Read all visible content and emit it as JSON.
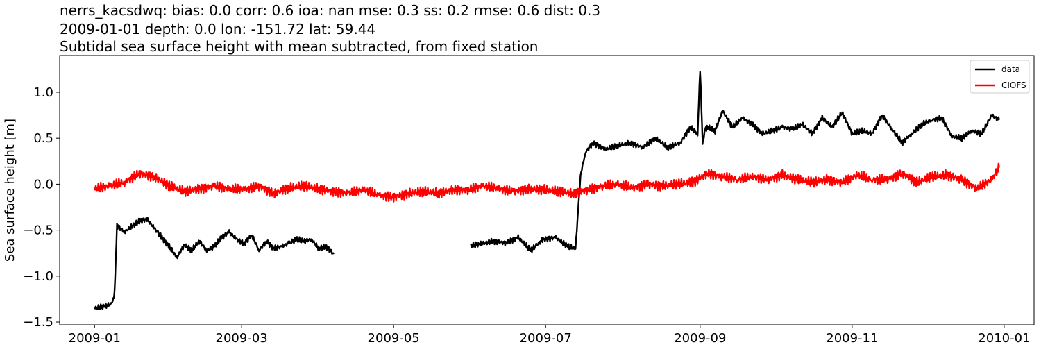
{
  "chart_data": {
    "type": "line",
    "title_lines": [
      "nerrs_kacsdwq: bias: 0.0  corr: 0.6  ioa: nan  mse: 0.3  ss: 0.2  rmse: 0.6  dist: 0.3",
      "2009-01-01 depth: 0.0 lon: -151.72 lat: 59.44",
      "Subtidal sea surface height with mean subtracted, from fixed station"
    ],
    "xlabel": "",
    "ylabel": "Sea surface height [m]",
    "xlim": [
      "2008-12-18",
      "2010-01-13"
    ],
    "ylim": [
      -1.53,
      1.4
    ],
    "x_ticks": [
      "2009-01",
      "2009-03",
      "2009-05",
      "2009-07",
      "2009-09",
      "2009-11",
      "2010-01"
    ],
    "y_ticks": [
      -1.5,
      -1.0,
      -0.5,
      0.0,
      0.5,
      1.0
    ],
    "y_tick_labels": [
      "−1.5",
      "−1.0",
      "−0.5",
      "0.0",
      "0.5",
      "1.0"
    ],
    "grid": false,
    "legend_position": "top-right",
    "series": [
      {
        "name": "data",
        "color": "#000000",
        "segments": [
          {
            "x": [
              "2009-01-01",
              "2009-01-05",
              "2009-01-08",
              "2009-01-09",
              "2009-01-10",
              "2009-01-13",
              "2009-01-16",
              "2009-01-19",
              "2009-01-22",
              "2009-01-25",
              "2009-01-28",
              "2009-01-31",
              "2009-02-03",
              "2009-02-06",
              "2009-02-09",
              "2009-02-12",
              "2009-02-15",
              "2009-02-18",
              "2009-02-21",
              "2009-02-24",
              "2009-02-27",
              "2009-03-02",
              "2009-03-05",
              "2009-03-08",
              "2009-03-11",
              "2009-03-14",
              "2009-03-17",
              "2009-03-20",
              "2009-03-23",
              "2009-03-26",
              "2009-03-29",
              "2009-04-01",
              "2009-04-04",
              "2009-04-07"
            ],
            "y": [
              -1.35,
              -1.33,
              -1.3,
              -1.2,
              -0.45,
              -0.52,
              -0.46,
              -0.4,
              -0.38,
              -0.48,
              -0.58,
              -0.68,
              -0.8,
              -0.66,
              -0.72,
              -0.62,
              -0.72,
              -0.68,
              -0.58,
              -0.52,
              -0.6,
              -0.65,
              -0.55,
              -0.72,
              -0.62,
              -0.7,
              -0.68,
              -0.64,
              -0.6,
              -0.62,
              -0.6,
              -0.7,
              -0.68,
              -0.76
            ]
          },
          {
            "x": [
              "2009-06-01",
              "2009-06-05",
              "2009-06-10",
              "2009-06-15",
              "2009-06-20",
              "2009-06-25",
              "2009-06-30",
              "2009-07-05",
              "2009-07-10",
              "2009-07-13",
              "2009-07-15",
              "2009-07-17",
              "2009-07-20",
              "2009-07-25",
              "2009-07-30",
              "2009-08-04",
              "2009-08-09",
              "2009-08-14",
              "2009-08-19",
              "2009-08-24",
              "2009-08-28",
              "2009-08-31",
              "2009-09-01",
              "2009-09-02",
              "2009-09-03",
              "2009-09-04",
              "2009-09-07",
              "2009-09-10",
              "2009-09-14",
              "2009-09-18",
              "2009-09-22",
              "2009-09-26",
              "2009-09-30",
              "2009-10-04",
              "2009-10-08",
              "2009-10-12",
              "2009-10-16",
              "2009-10-20",
              "2009-10-24",
              "2009-10-28",
              "2009-11-01",
              "2009-11-05",
              "2009-11-09",
              "2009-11-13",
              "2009-11-17",
              "2009-11-21",
              "2009-11-25",
              "2009-11-29",
              "2009-12-03",
              "2009-12-07",
              "2009-12-11",
              "2009-12-15",
              "2009-12-19",
              "2009-12-23",
              "2009-12-27",
              "2009-12-30"
            ],
            "y": [
              -0.67,
              -0.65,
              -0.62,
              -0.64,
              -0.58,
              -0.72,
              -0.6,
              -0.58,
              -0.68,
              -0.7,
              0.1,
              0.35,
              0.45,
              0.38,
              0.42,
              0.45,
              0.4,
              0.5,
              0.4,
              0.45,
              0.62,
              0.55,
              1.25,
              0.45,
              0.6,
              0.62,
              0.58,
              0.8,
              0.62,
              0.72,
              0.65,
              0.55,
              0.58,
              0.62,
              0.6,
              0.65,
              0.55,
              0.72,
              0.62,
              0.78,
              0.55,
              0.58,
              0.55,
              0.75,
              0.6,
              0.45,
              0.55,
              0.65,
              0.7,
              0.72,
              0.52,
              0.5,
              0.58,
              0.55,
              0.75,
              0.7
            ]
          }
        ]
      },
      {
        "name": "CIOFS",
        "color": "#ff0000",
        "segments": [
          {
            "x": [
              "2009-01-01",
              "2009-01-07",
              "2009-01-13",
              "2009-01-19",
              "2009-01-25",
              "2009-01-31",
              "2009-02-06",
              "2009-02-12",
              "2009-02-18",
              "2009-02-24",
              "2009-03-02",
              "2009-03-08",
              "2009-03-14",
              "2009-03-20",
              "2009-03-26",
              "2009-04-01",
              "2009-04-07",
              "2009-04-13",
              "2009-04-19",
              "2009-04-25",
              "2009-05-01",
              "2009-05-07",
              "2009-05-13",
              "2009-05-19",
              "2009-05-25",
              "2009-05-31",
              "2009-06-06",
              "2009-06-12",
              "2009-06-18",
              "2009-06-24",
              "2009-06-30",
              "2009-07-06",
              "2009-07-12",
              "2009-07-18",
              "2009-07-24",
              "2009-07-30",
              "2009-08-05",
              "2009-08-11",
              "2009-08-17",
              "2009-08-23",
              "2009-08-29",
              "2009-09-04",
              "2009-09-10",
              "2009-09-16",
              "2009-09-22",
              "2009-09-28",
              "2009-10-04",
              "2009-10-10",
              "2009-10-16",
              "2009-10-22",
              "2009-10-28",
              "2009-11-03",
              "2009-11-09",
              "2009-11-15",
              "2009-11-21",
              "2009-11-27",
              "2009-12-03",
              "2009-12-09",
              "2009-12-15",
              "2009-12-21",
              "2009-12-27",
              "2009-12-30"
            ],
            "y": [
              -0.05,
              -0.02,
              0.02,
              0.12,
              0.08,
              -0.02,
              -0.08,
              -0.05,
              -0.02,
              -0.05,
              -0.06,
              -0.02,
              -0.1,
              -0.04,
              -0.02,
              -0.05,
              -0.08,
              -0.1,
              -0.06,
              -0.12,
              -0.14,
              -0.1,
              -0.08,
              -0.1,
              -0.06,
              -0.06,
              -0.02,
              -0.05,
              -0.08,
              -0.05,
              -0.06,
              -0.08,
              -0.1,
              -0.06,
              -0.02,
              0.0,
              -0.04,
              0.0,
              -0.02,
              0.0,
              0.02,
              0.12,
              0.08,
              0.05,
              0.08,
              0.05,
              0.1,
              0.05,
              0.02,
              0.05,
              0.02,
              0.1,
              0.05,
              0.05,
              0.12,
              0.02,
              0.08,
              0.1,
              0.05,
              -0.05,
              0.05,
              0.18
            ]
          }
        ]
      }
    ]
  }
}
